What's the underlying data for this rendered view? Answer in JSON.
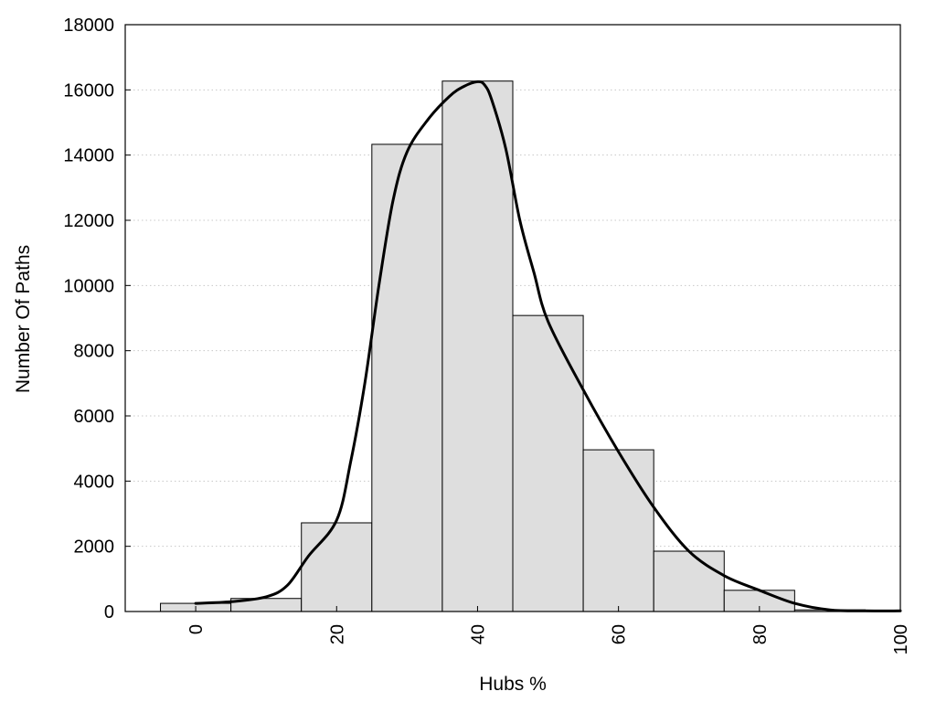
{
  "chart_data": {
    "type": "bar",
    "title": "",
    "xlabel": "Hubs %",
    "ylabel": "Number Of Paths",
    "xlim": [
      -10,
      100
    ],
    "ylim": [
      0,
      18000
    ],
    "xticks": [
      0,
      20,
      40,
      60,
      80,
      100
    ],
    "yticks": [
      0,
      2000,
      4000,
      6000,
      8000,
      10000,
      12000,
      14000,
      16000,
      18000
    ],
    "grid": "horizontal dotted",
    "bin_width": 10,
    "bins": [
      {
        "center": 0,
        "value": 250
      },
      {
        "center": 10,
        "value": 400
      },
      {
        "center": 20,
        "value": 2720
      },
      {
        "center": 30,
        "value": 14330
      },
      {
        "center": 40,
        "value": 16270
      },
      {
        "center": 50,
        "value": 9080
      },
      {
        "center": 60,
        "value": 4960
      },
      {
        "center": 70,
        "value": 1850
      },
      {
        "center": 80,
        "value": 650
      },
      {
        "center": 90,
        "value": 50
      },
      {
        "center": 100,
        "value": 20
      }
    ],
    "curve": {
      "x": [
        0,
        5,
        10,
        13,
        16,
        20,
        22,
        24,
        26,
        28,
        30,
        33,
        36,
        38,
        40,
        41,
        42,
        44,
        46,
        48,
        50,
        55,
        60,
        65,
        70,
        75,
        80,
        85,
        90,
        95,
        100
      ],
      "y": [
        250,
        300,
        450,
        800,
        1700,
        2800,
        4600,
        7000,
        10000,
        12600,
        14100,
        15100,
        15800,
        16100,
        16250,
        16150,
        15700,
        14200,
        12000,
        10400,
        8900,
        6800,
        4900,
        3200,
        1850,
        1100,
        650,
        250,
        50,
        20,
        20
      ]
    },
    "colors": {
      "bar_fill": "#dedede",
      "bar_stroke": "#000000",
      "curve": "#000000",
      "grid": "#c8c8c8"
    }
  }
}
